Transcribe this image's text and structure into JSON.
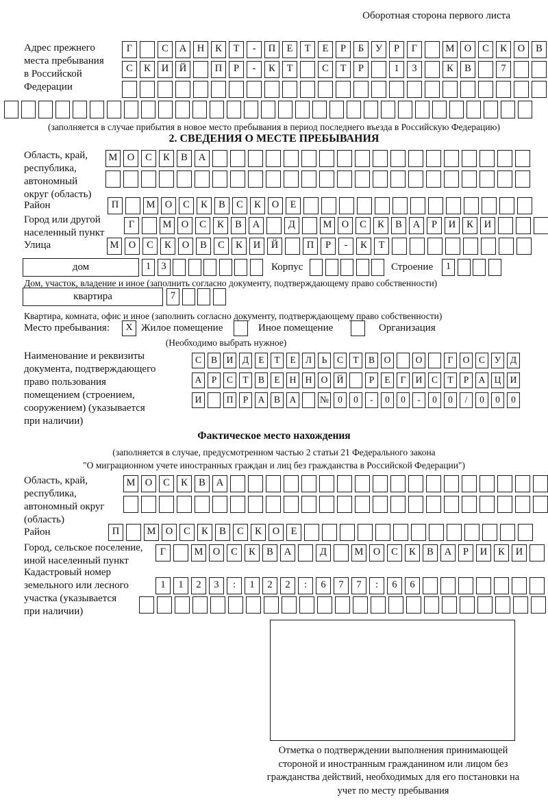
{
  "header": {
    "note": "Оборотная сторона первого листа"
  },
  "prev_address": {
    "label": "Адрес прежнего\nместа пребывания\nв Российской\nФедерации",
    "r1": [
      "Г",
      "",
      "С",
      "А",
      "Н",
      "К",
      "Т",
      "-",
      "П",
      "Е",
      "Т",
      "Е",
      "Р",
      "Б",
      "У",
      "Р",
      "Г",
      "",
      "М",
      "О",
      "С",
      "К",
      "О",
      "В"
    ],
    "r2": [
      "С",
      "К",
      "И",
      "Й",
      "",
      "П",
      "Р",
      "-",
      "К",
      "Т",
      "",
      "С",
      "Т",
      "Р",
      "",
      "1",
      "3",
      "",
      "К",
      "В",
      "",
      "7",
      "",
      ""
    ],
    "r3": [
      "",
      "",
      "",
      "",
      "",
      "",
      "",
      "",
      "",
      "",
      "",
      "",
      "",
      "",
      "",
      "",
      "",
      "",
      "",
      "",
      "",
      "",
      "",
      ""
    ],
    "r4": [
      "",
      "",
      "",
      "",
      "",
      "",
      "",
      "",
      "",
      "",
      "",
      "",
      "",
      "",
      "",
      "",
      "",
      "",
      "",
      "",
      "",
      "",
      "",
      "",
      "",
      "",
      "",
      "",
      "",
      "",
      ""
    ],
    "note": "(заполняется в случае прибытия в новое место пребывания в период последнего въезда в Российскую Федерацию)"
  },
  "stay_info": {
    "title": "2. СВЕДЕНИЯ О МЕСТЕ ПРЕБЫВАНИЯ",
    "oblast": {
      "label": "Область, край,\nреспублика,\nавтономный\nокруг (область)",
      "r1": [
        "М",
        "О",
        "С",
        "К",
        "В",
        "А",
        "",
        "",
        "",
        "",
        "",
        "",
        "",
        "",
        "",
        "",
        "",
        "",
        "",
        "",
        "",
        "",
        "",
        ""
      ],
      "r2": [
        "",
        "",
        "",
        "",
        "",
        "",
        "",
        "",
        "",
        "",
        "",
        "",
        "",
        "",
        "",
        "",
        "",
        "",
        "",
        "",
        "",
        "",
        "",
        ""
      ]
    },
    "raion": {
      "label": "Район",
      "r1": [
        "П",
        "",
        "М",
        "О",
        "С",
        "К",
        "В",
        "С",
        "К",
        "О",
        "Е",
        "",
        "",
        "",
        "",
        "",
        "",
        "",
        "",
        "",
        "",
        "",
        "",
        ""
      ]
    },
    "gorod": {
      "label": "Город или другой\nнаселенный пункт",
      "r1": [
        "Г",
        "",
        "М",
        "О",
        "С",
        "К",
        "В",
        "А",
        "",
        "Д",
        "",
        "М",
        "О",
        "С",
        "К",
        "В",
        "А",
        "Р",
        "И",
        "К",
        "И",
        "",
        "",
        ""
      ]
    },
    "ulitsa": {
      "label": "Улица",
      "r1": [
        "М",
        "О",
        "С",
        "К",
        "О",
        "В",
        "С",
        "К",
        "И",
        "Й",
        "",
        "П",
        "Р",
        "-",
        "К",
        "Т",
        "",
        "",
        "",
        "",
        "",
        "",
        "",
        ""
      ]
    },
    "dom": {
      "box_label": "дом",
      "cells": [
        "1",
        "3",
        "",
        "",
        "",
        "",
        "",
        ""
      ],
      "korpus_label": "Корпус",
      "korpus_cells": [
        "",
        "",
        "",
        "",
        ""
      ],
      "stroenie_label": "Строение",
      "stroenie_cells": [
        "1",
        "",
        "",
        ""
      ],
      "note": "Дом, участок, владение и иное (заполнить согласно документу, подтверждающему право собственности)"
    },
    "kvartira": {
      "box_label": "квартира",
      "cells": [
        "7",
        "",
        "",
        ""
      ],
      "note": "Квартира, комната, офис и иное (заполнить согласно документу, подтверждающему право собственности)"
    },
    "mesto": {
      "label": "Место пребывания:",
      "options": [
        {
          "label": "Жилое помещение",
          "mark": "X"
        },
        {
          "label": "Иное помещение",
          "mark": ""
        },
        {
          "label": "Организация",
          "mark": ""
        }
      ],
      "note": "(Необходимо выбрать нужное)"
    },
    "document": {
      "label": "Наименование и реквизиты\nдокумента, подтверждающего\nправо пользования\nпомещением (строением,\nсооружением) (указывается\nпри наличии)",
      "r1": [
        "С",
        "В",
        "И",
        "Д",
        "Е",
        "Т",
        "Е",
        "Л",
        "Ь",
        "С",
        "Т",
        "В",
        "О",
        "",
        "О",
        "",
        "Г",
        "О",
        "С",
        "У",
        "Д"
      ],
      "r2": [
        "А",
        "Р",
        "С",
        "Т",
        "В",
        "Е",
        "Н",
        "Н",
        "О",
        "Й",
        "",
        "Р",
        "Е",
        "Г",
        "И",
        "С",
        "Т",
        "Р",
        "А",
        "Ц",
        "И"
      ],
      "r3": [
        "И",
        "",
        "П",
        "Р",
        "А",
        "В",
        "А",
        "",
        "№",
        "0",
        "0",
        "-",
        "0",
        "0",
        "-",
        "0",
        "0",
        "/",
        "0",
        "0",
        "0"
      ]
    }
  },
  "factual": {
    "title": "Фактическое место нахождения",
    "note1": "(заполняется в случае, предусмотренном частью 2 статьи 21 Федерального закона",
    "note2": "\"О миграционном учете иностранных граждан и лиц без гражданства в Российской Федерации\")",
    "oblast": {
      "label": "Область, край,\nреспублика,\nавтономный округ\n(область)",
      "r1": [
        "М",
        "О",
        "С",
        "К",
        "В",
        "А",
        "",
        "",
        "",
        "",
        "",
        "",
        "",
        "",
        "",
        "",
        "",
        "",
        "",
        "",
        "",
        "",
        "",
        ""
      ],
      "r2": [
        "",
        "",
        "",
        "",
        "",
        "",
        "",
        "",
        "",
        "",
        "",
        "",
        "",
        "",
        "",
        "",
        "",
        "",
        "",
        "",
        "",
        "",
        "",
        ""
      ]
    },
    "raion": {
      "label": "Район",
      "r1": [
        "П",
        "",
        "М",
        "О",
        "С",
        "К",
        "В",
        "С",
        "К",
        "О",
        "Е",
        "",
        "",
        "",
        "",
        "",
        "",
        "",
        "",
        "",
        "",
        "",
        "",
        ""
      ]
    },
    "gorod": {
      "label": "Город, сельское поселение,\nиной населенный пункт",
      "r1": [
        "Г",
        "",
        "М",
        "О",
        "С",
        "К",
        "В",
        "А",
        "",
        "Д",
        "",
        "М",
        "О",
        "С",
        "К",
        "В",
        "А",
        "Р",
        "И",
        "К",
        "И",
        ""
      ]
    },
    "kadastr": {
      "label": "Кадастровый номер\nземельного или лесного\nучастка (указывается\nпри наличии)",
      "r1": [
        "1",
        "1",
        "2",
        "3",
        ":",
        "1",
        "2",
        "2",
        ":",
        "6",
        "7",
        "7",
        ":",
        "6",
        "6",
        "",
        "",
        "",
        "",
        "",
        "",
        ""
      ],
      "r2": [
        "",
        "",
        "",
        "",
        "",
        "",
        "",
        "",
        "",
        "",
        "",
        "",
        "",
        "",
        "",
        "",
        "",
        "",
        "",
        "",
        "",
        "",
        ""
      ]
    }
  },
  "bottom": {
    "caption": "Отметка о подтверждении выполнения принимающей стороной и иностранным гражданином или лицом без гражданства действий, необходимых для его постановки на учет по месту пребывания"
  }
}
